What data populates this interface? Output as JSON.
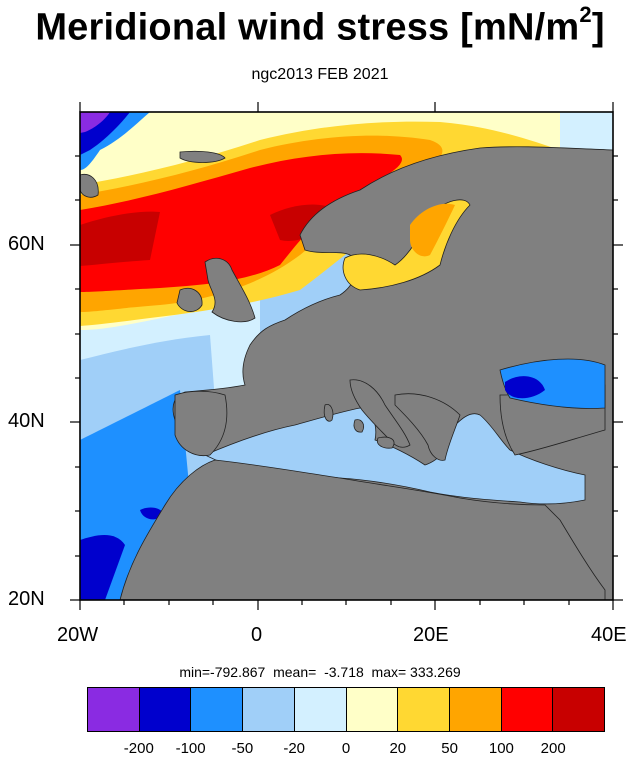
{
  "title": "Meridional wind stress [mN/m",
  "title_sup": "2",
  "title_end": "]",
  "subtitle": "ngc2013 FEB 2021",
  "stats": "min=-792.867  mean=  -3.718  max= 333.269",
  "colorbar": {
    "colors": [
      "#8a2be2",
      "#0000cd",
      "#1e90ff",
      "#a0cff8",
      "#d3f0ff",
      "#ffffc8",
      "#ffd832",
      "#ffa500",
      "#ff0000",
      "#c80000"
    ],
    "labels": [
      "-200",
      "-100",
      "-50",
      "-20",
      "0",
      "20",
      "50",
      "100",
      "200"
    ]
  },
  "axes": {
    "x_labels": [
      "20W",
      "0",
      "20E",
      "40E"
    ],
    "y_labels": [
      "60N",
      "40N",
      "20N"
    ],
    "lon_range": [
      -20,
      40
    ],
    "lat_range": [
      20,
      75
    ]
  },
  "colors": {
    "land": "#808080",
    "frame": "#000000"
  }
}
